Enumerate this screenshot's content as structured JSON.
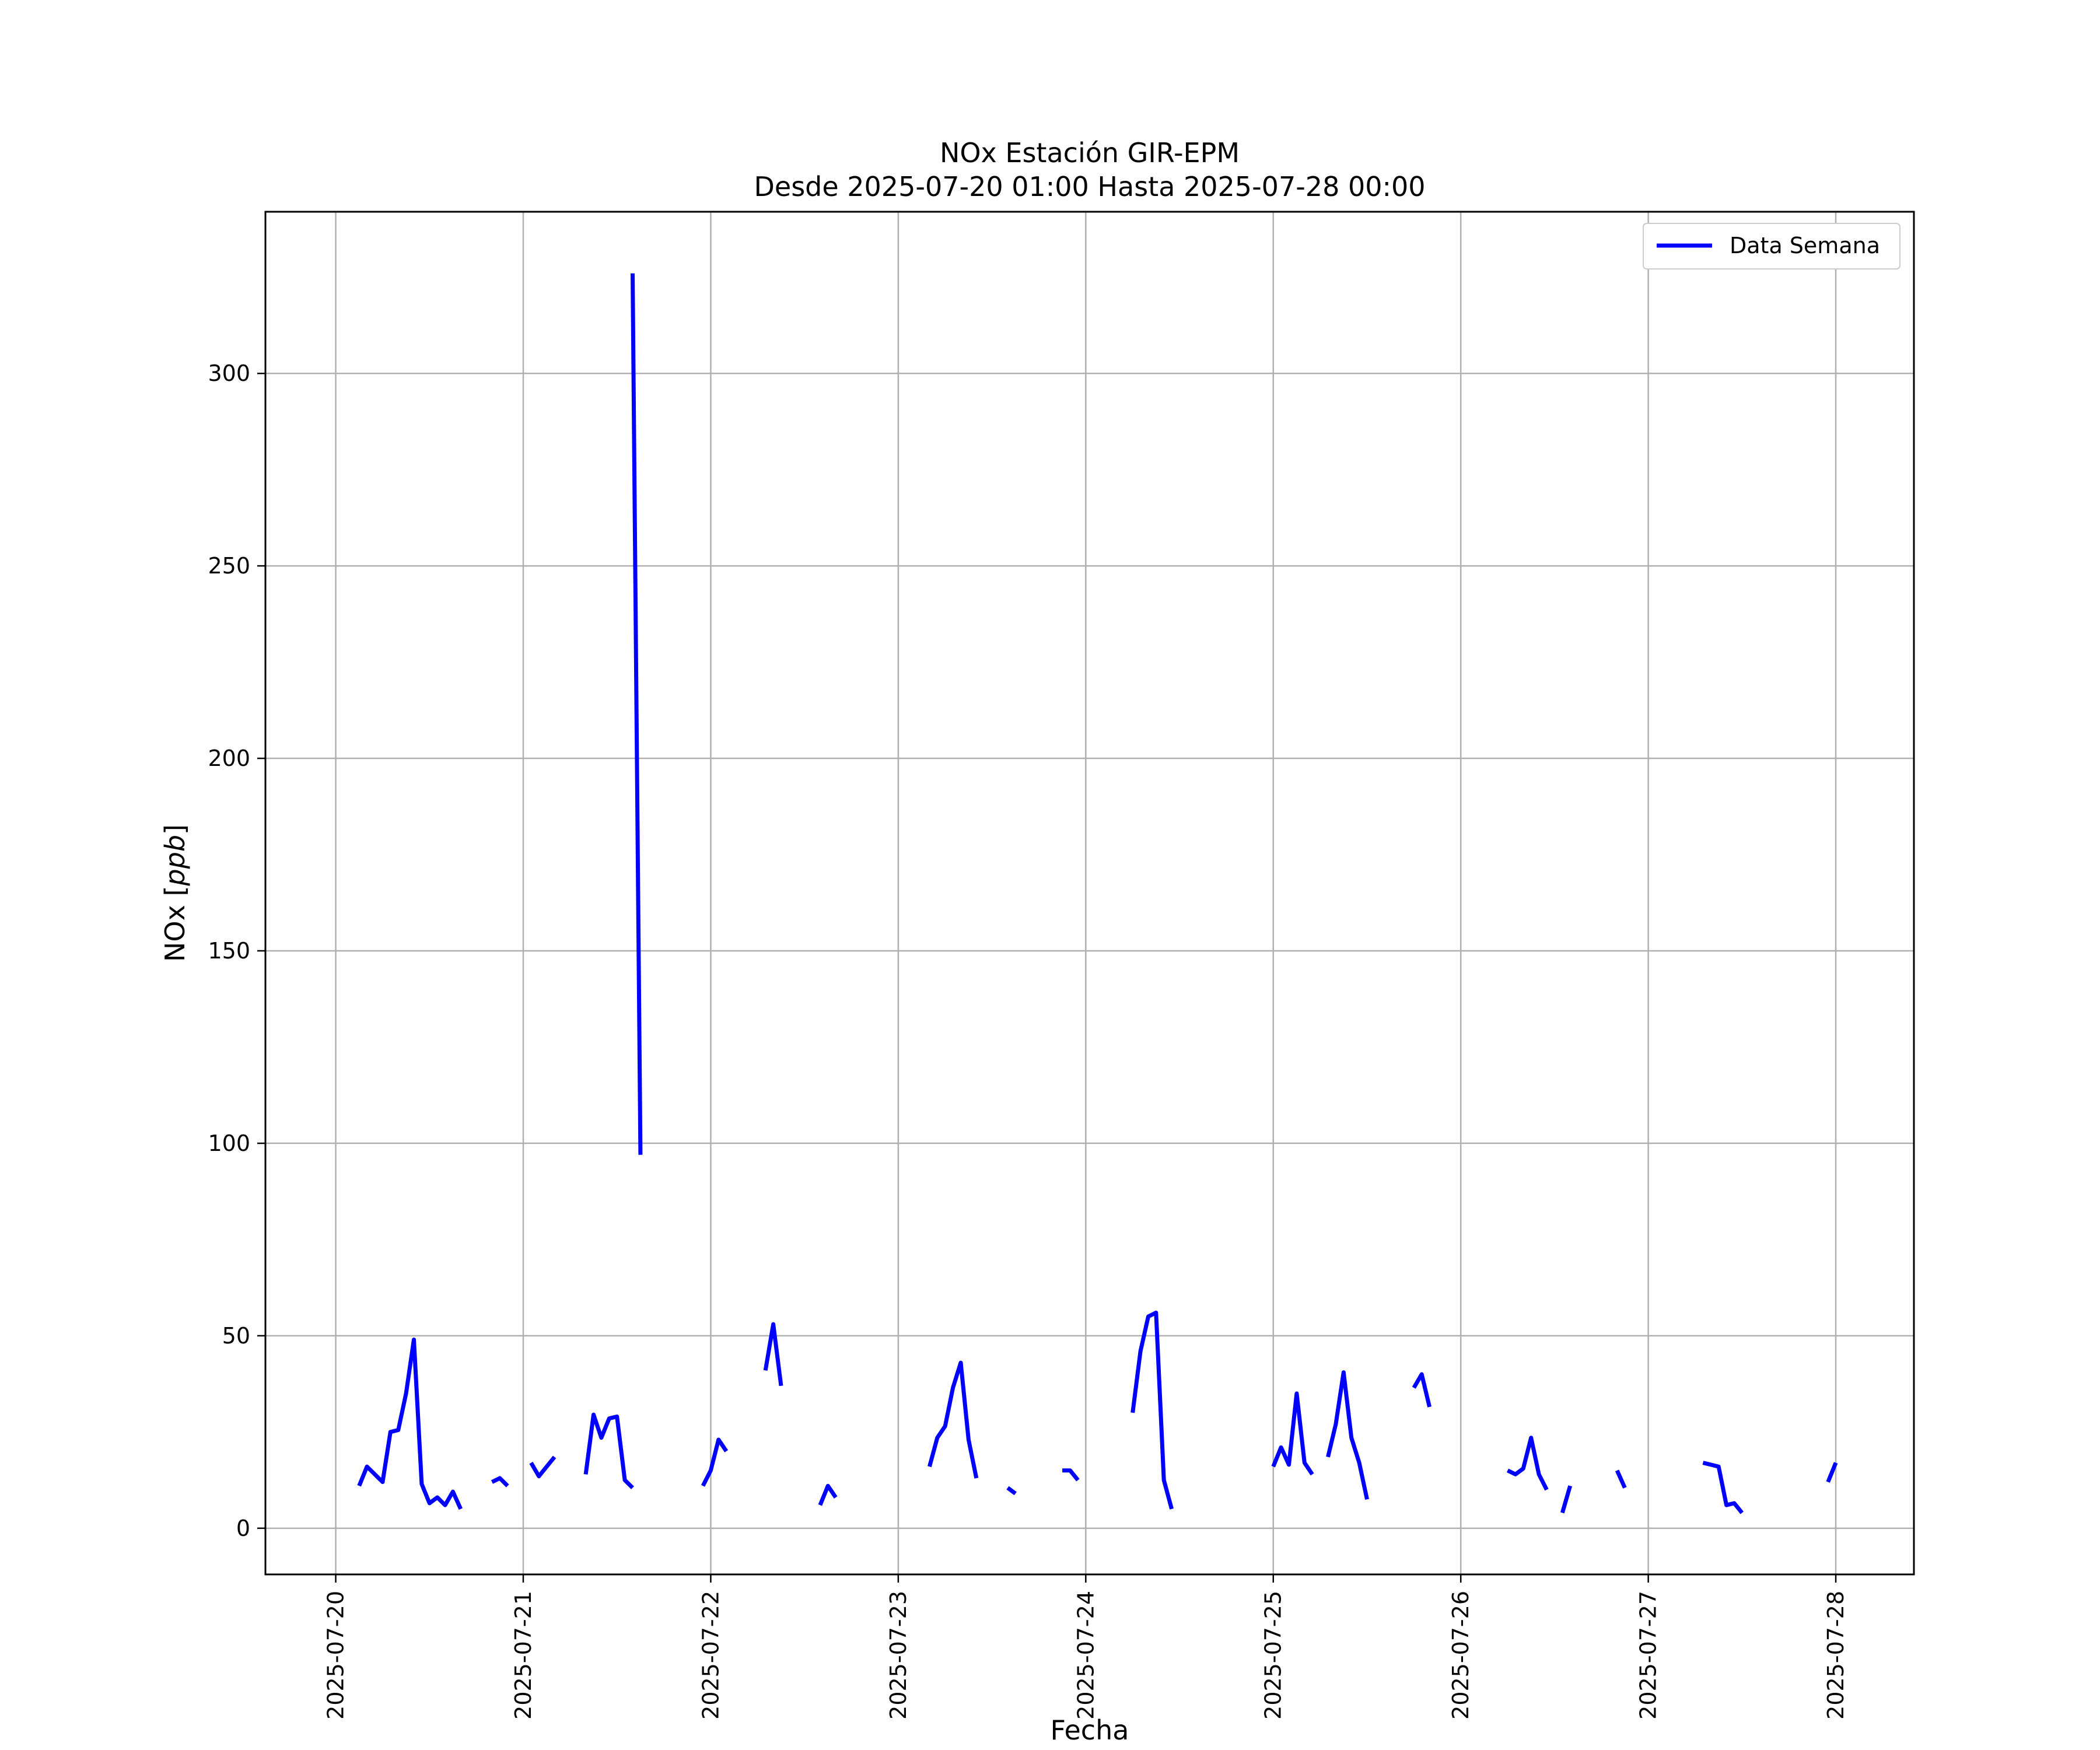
{
  "chart_data": {
    "type": "line",
    "title": "NOx Estación GIR-EPM",
    "subtitle": "Desde 2025-07-20 01:00 Hasta 2025-07-28 00:00",
    "xlabel": "Fecha",
    "ylabel": "NOx",
    "ylabel_unit": "ppb",
    "xlim": [
      "2025-07-19 15:00",
      "2025-07-28 10:00"
    ],
    "ylim": [
      -12,
      342
    ],
    "x_ticks": [
      "2025-07-20",
      "2025-07-21",
      "2025-07-22",
      "2025-07-23",
      "2025-07-24",
      "2025-07-25",
      "2025-07-26",
      "2025-07-27",
      "2025-07-28"
    ],
    "y_ticks": [
      "0",
      "50",
      "100",
      "150",
      "200",
      "250",
      "300"
    ],
    "grid": true,
    "legend_position": "upper right",
    "series": [
      {
        "name": "Data Semana",
        "color": "#0000ff",
        "segments": [
          [
            [
              "2025-07-20 03:00",
              11
            ],
            [
              "2025-07-20 04:00",
              16
            ],
            [
              "2025-07-20 05:00",
              14
            ],
            [
              "2025-07-20 06:00",
              12
            ],
            [
              "2025-07-20 07:00",
              25
            ],
            [
              "2025-07-20 08:00",
              25.5
            ],
            [
              "2025-07-20 09:00",
              35
            ],
            [
              "2025-07-20 10:00",
              49
            ],
            [
              "2025-07-20 11:00",
              11.5
            ],
            [
              "2025-07-20 12:00",
              6.5
            ],
            [
              "2025-07-20 13:00",
              8
            ],
            [
              "2025-07-20 14:00",
              6
            ],
            [
              "2025-07-20 15:00",
              9.5
            ],
            [
              "2025-07-20 16:00",
              5
            ]
          ],
          [
            [
              "2025-07-20 20:00",
              12
            ],
            [
              "2025-07-20 21:00",
              13
            ],
            [
              "2025-07-20 22:00",
              11
            ]
          ],
          [
            [
              "2025-07-21 01:00",
              17
            ],
            [
              "2025-07-21 02:00",
              13.5
            ],
            [
              "2025-07-21 03:00",
              16
            ],
            [
              "2025-07-21 04:00",
              18.5
            ]
          ],
          [
            [
              "2025-07-21 08:00",
              14
            ],
            [
              "2025-07-21 09:00",
              29.5
            ],
            [
              "2025-07-21 10:00",
              23.5
            ],
            [
              "2025-07-21 11:00",
              28.5
            ],
            [
              "2025-07-21 12:00",
              29
            ],
            [
              "2025-07-21 13:00",
              12.5
            ],
            [
              "2025-07-21 14:00",
              10.5
            ]
          ],
          [
            [
              "2025-07-21 14:00",
              326
            ],
            [
              "2025-07-21 15:00",
              97
            ]
          ],
          [
            [
              "2025-07-21 23:00",
              11
            ],
            [
              "2025-07-22 00:00",
              15
            ],
            [
              "2025-07-22 01:00",
              23
            ],
            [
              "2025-07-22 02:00",
              20
            ]
          ],
          [
            [
              "2025-07-22 07:00",
              41
            ],
            [
              "2025-07-22 08:00",
              53
            ],
            [
              "2025-07-22 09:00",
              37
            ]
          ],
          [
            [
              "2025-07-22 14:00",
              6
            ],
            [
              "2025-07-22 15:00",
              11
            ],
            [
              "2025-07-22 16:00",
              8
            ]
          ],
          [
            [
              "2025-07-23 04:00",
              16
            ],
            [
              "2025-07-23 05:00",
              23.5
            ],
            [
              "2025-07-23 06:00",
              26.5
            ],
            [
              "2025-07-23 07:00",
              36.5
            ],
            [
              "2025-07-23 08:00",
              43
            ],
            [
              "2025-07-23 09:00",
              23
            ],
            [
              "2025-07-23 10:00",
              13
            ]
          ],
          [
            [
              "2025-07-23 14:00",
              10.5
            ],
            [
              "2025-07-23 15:00",
              9
            ]
          ],
          [
            [
              "2025-07-23 21:00",
              15
            ],
            [
              "2025-07-23 22:00",
              15
            ],
            [
              "2025-07-23 23:00",
              12.5
            ]
          ],
          [
            [
              "2025-07-24 06:00",
              30
            ],
            [
              "2025-07-24 07:00",
              46
            ],
            [
              "2025-07-24 08:00",
              55
            ],
            [
              "2025-07-24 09:00",
              56
            ],
            [
              "2025-07-24 10:00",
              12.5
            ],
            [
              "2025-07-24 11:00",
              5
            ]
          ],
          [
            [
              "2025-07-25 00:00",
              16
            ],
            [
              "2025-07-25 01:00",
              21
            ],
            [
              "2025-07-25 02:00",
              16.5
            ],
            [
              "2025-07-25 03:00",
              35
            ],
            [
              "2025-07-25 04:00",
              17
            ],
            [
              "2025-07-25 05:00",
              14
            ]
          ],
          [
            [
              "2025-07-25 07:00",
              18.5
            ],
            [
              "2025-07-25 08:00",
              27
            ],
            [
              "2025-07-25 09:00",
              40.5
            ],
            [
              "2025-07-25 10:00",
              23.5
            ],
            [
              "2025-07-25 11:00",
              17
            ],
            [
              "2025-07-25 12:00",
              7.5
            ]
          ],
          [
            [
              "2025-07-25 18:00",
              36.5
            ],
            [
              "2025-07-25 19:00",
              40
            ],
            [
              "2025-07-25 20:00",
              31.5
            ]
          ],
          [
            [
              "2025-07-26 06:00",
              15
            ],
            [
              "2025-07-26 07:00",
              14
            ],
            [
              "2025-07-26 08:00",
              15.5
            ],
            [
              "2025-07-26 09:00",
              23.5
            ],
            [
              "2025-07-26 10:00",
              14
            ],
            [
              "2025-07-26 11:00",
              10
            ]
          ],
          [
            [
              "2025-07-26 13:00",
              4
            ],
            [
              "2025-07-26 14:00",
              11
            ]
          ],
          [
            [
              "2025-07-26 20:00",
              15
            ],
            [
              "2025-07-26 21:00",
              10.5
            ]
          ],
          [
            [
              "2025-07-27 07:00",
              17
            ],
            [
              "2025-07-27 08:00",
              16.5
            ],
            [
              "2025-07-27 09:00",
              16
            ],
            [
              "2025-07-27 10:00",
              6
            ],
            [
              "2025-07-27 11:00",
              6.5
            ],
            [
              "2025-07-27 12:00",
              4
            ]
          ],
          [
            [
              "2025-07-27 23:00",
              12
            ],
            [
              "2025-07-28 00:00",
              17
            ]
          ]
        ]
      }
    ]
  }
}
